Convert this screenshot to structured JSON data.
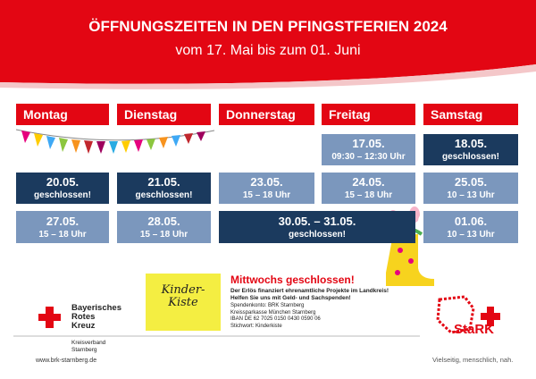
{
  "header": {
    "title": "ÖFFNUNGSZEITEN IN DEN PFINGSTFERIEN 2024",
    "subtitle": "vom 17. Mai bis zum 01. Juni"
  },
  "days": [
    "Montag",
    "Dienstag",
    "Donnerstag",
    "Freitag",
    "Samstag"
  ],
  "cells": [
    {
      "date": "17.05.",
      "info": "09:30 – 12:30 Uhr"
    },
    {
      "date": "18.05.",
      "info": "geschlossen!"
    },
    {
      "date": "20.05.",
      "info": "geschlossen!"
    },
    {
      "date": "21.05.",
      "info": "geschlossen!"
    },
    {
      "date": "23.05.",
      "info": "15 – 18 Uhr"
    },
    {
      "date": "24.05.",
      "info": "15 – 18 Uhr"
    },
    {
      "date": "25.05.",
      "info": "10 – 13 Uhr"
    },
    {
      "date": "27.05.",
      "info": "15 – 18 Uhr"
    },
    {
      "date": "28.05.",
      "info": "15 – 18 Uhr"
    },
    {
      "date": "30.05. – 31.05.",
      "info": "geschlossen!"
    },
    {
      "date": "01.06.",
      "info": "10 – 13 Uhr"
    }
  ],
  "brk_logo": {
    "name_lines": [
      "Bayerisches",
      "Rotes",
      "Kreuz"
    ],
    "unit_lines": [
      "Kreisverband",
      "Starnberg"
    ]
  },
  "kinderkiste": {
    "lines": [
      "Kinder-",
      "Kiste"
    ]
  },
  "notice": {
    "heading": "Mittwochs geschlossen!",
    "lines": [
      "Der Erlös finanziert ehrenamtliche Projekte im Landkreis!",
      "Helfen Sie uns mit Geld- und Sachspenden!"
    ],
    "bank_lines": [
      "Spendenkonto: BRK Starnberg",
      "Kreissparkasse München Starnberg",
      "IBAN DE 62 7025 0150 0430 0590 06",
      "Stichwort: Kinderkiste"
    ]
  },
  "stark_logo": {
    "name": "StaRK",
    "tagline": "Vielseitig, menschlich, nah."
  },
  "footer": {
    "url": "www.brk-starnberg.de"
  }
}
